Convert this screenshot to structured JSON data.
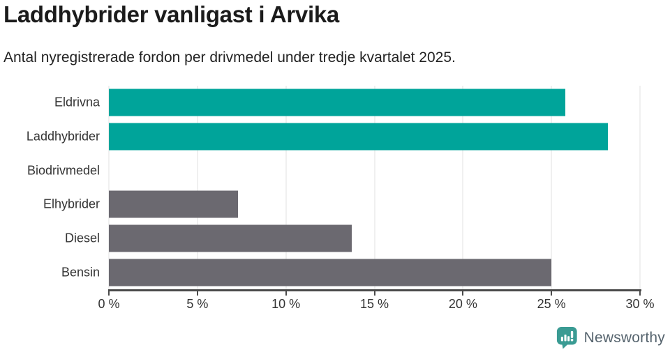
{
  "chart_data": {
    "type": "bar",
    "orientation": "horizontal",
    "title": "Laddhybrider vanligast i Arvika",
    "subtitle": "Antal nyregistrerade fordon per drivmedel under tredje kvartalet 2025.",
    "categories": [
      "Eldrivna",
      "Laddhybrider",
      "Biodrivmedel",
      "Elhybrider",
      "Diesel",
      "Bensin"
    ],
    "values": [
      25.8,
      28.2,
      0,
      7.3,
      13.7,
      25.0
    ],
    "value_unit": "%",
    "xlim": [
      0,
      30
    ],
    "xticks": [
      0,
      5,
      10,
      15,
      20,
      25,
      30
    ],
    "xtick_labels": [
      "0 %",
      "5 %",
      "10 %",
      "15 %",
      "20 %",
      "25 %",
      "30 %"
    ],
    "bar_colors": [
      "#00a49a",
      "#00a49a",
      "#6b6970",
      "#6b6970",
      "#6b6970",
      "#6b6970"
    ],
    "colors": {
      "highlight": "#00a49a",
      "default": "#6b6970",
      "grid": "#e2e2e2",
      "axis": "#4a4a4a",
      "label": "#333333"
    },
    "grid": true,
    "legend": false
  },
  "footer": {
    "brand": "Newsworthy",
    "brand_text_color": "#56646e",
    "brand_icon_color": "#3a9b93"
  }
}
